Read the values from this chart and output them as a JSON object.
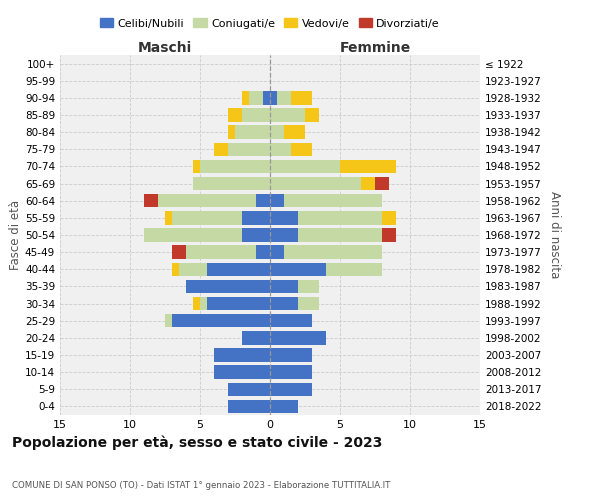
{
  "age_groups": [
    "0-4",
    "5-9",
    "10-14",
    "15-19",
    "20-24",
    "25-29",
    "30-34",
    "35-39",
    "40-44",
    "45-49",
    "50-54",
    "55-59",
    "60-64",
    "65-69",
    "70-74",
    "75-79",
    "80-84",
    "85-89",
    "90-94",
    "95-99",
    "100+"
  ],
  "birth_years": [
    "2018-2022",
    "2013-2017",
    "2008-2012",
    "2003-2007",
    "1998-2002",
    "1993-1997",
    "1988-1992",
    "1983-1987",
    "1978-1982",
    "1973-1977",
    "1968-1972",
    "1963-1967",
    "1958-1962",
    "1953-1957",
    "1948-1952",
    "1943-1947",
    "1938-1942",
    "1933-1937",
    "1928-1932",
    "1923-1927",
    "≤ 1922"
  ],
  "maschi_celibi": [
    3,
    3,
    4,
    4,
    2,
    7,
    4.5,
    6,
    4.5,
    1,
    2,
    2,
    1,
    0,
    0,
    0,
    0,
    0,
    0.5,
    0,
    0
  ],
  "maschi_coniugati": [
    0,
    0,
    0,
    0,
    0,
    0.5,
    0.5,
    0,
    2,
    5,
    7,
    5,
    7,
    5.5,
    5,
    3,
    2.5,
    2,
    1,
    0,
    0
  ],
  "maschi_vedovi": [
    0,
    0,
    0,
    0,
    0,
    0,
    0.5,
    0,
    0.5,
    0,
    0,
    0.5,
    0,
    0,
    0.5,
    1,
    0.5,
    1,
    0.5,
    0,
    0
  ],
  "maschi_divorziati": [
    0,
    0,
    0,
    0,
    0,
    0,
    0,
    0,
    0,
    1,
    0,
    0,
    1,
    0,
    0,
    0,
    0,
    0,
    0,
    0,
    0
  ],
  "femmine_celibi": [
    2,
    3,
    3,
    3,
    4,
    3,
    2,
    2,
    4,
    1,
    2,
    2,
    1,
    0,
    0,
    0,
    0,
    0,
    0.5,
    0,
    0
  ],
  "femmine_coniugati": [
    0,
    0,
    0,
    0,
    0,
    0,
    1.5,
    1.5,
    4,
    7,
    6,
    6,
    7,
    6.5,
    5,
    1.5,
    1,
    2.5,
    1,
    0,
    0
  ],
  "femmine_vedovi": [
    0,
    0,
    0,
    0,
    0,
    0,
    0,
    0,
    0,
    0,
    0,
    1,
    0,
    1,
    4,
    1.5,
    1.5,
    1,
    1.5,
    0,
    0
  ],
  "femmine_divorziati": [
    0,
    0,
    0,
    0,
    0,
    0,
    0,
    0,
    0,
    0,
    1,
    0,
    0,
    1,
    0,
    0,
    0,
    0,
    0,
    0,
    0
  ],
  "color_celibi": "#4472c4",
  "color_coniugati": "#c5d9a4",
  "color_vedovi": "#f5c518",
  "color_divorziati": "#c0392b",
  "title": "Popolazione per età, sesso e stato civile - 2023",
  "subtitle": "COMUNE DI SAN PONSO (TO) - Dati ISTAT 1° gennaio 2023 - Elaborazione TUTTITALIA.IT",
  "xlabel_left": "Maschi",
  "xlabel_right": "Femmine",
  "ylabel_left": "Fasce di età",
  "ylabel_right": "Anni di nascita",
  "xlim": 15,
  "legend_labels": [
    "Celibi/Nubili",
    "Coniugati/e",
    "Vedovi/e",
    "Divorziati/e"
  ],
  "background_color": "#ffffff",
  "grid_color": "#cccccc"
}
